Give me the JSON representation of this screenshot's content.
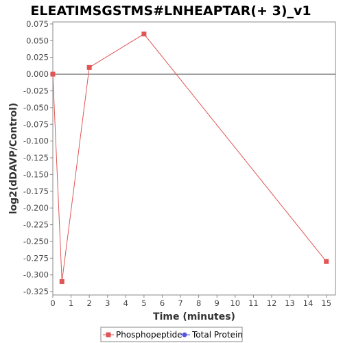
{
  "chart_data": {
    "type": "line",
    "title": "ELEATIMSGSTMS#LNHEAPTAR(+ 3)_v1",
    "xlabel": "Time (minutes)",
    "ylabel": "log2(dDAVP/Control)",
    "xlim": [
      0,
      15.5
    ],
    "ylim": [
      -0.33,
      0.078
    ],
    "x_ticks": [
      0,
      1,
      2,
      3,
      4,
      5,
      6,
      7,
      8,
      9,
      10,
      11,
      12,
      13,
      14,
      15
    ],
    "y_ticks": [
      0.075,
      0.05,
      0.025,
      0.0,
      -0.025,
      -0.05,
      -0.075,
      -0.1,
      -0.125,
      -0.15,
      -0.175,
      -0.2,
      -0.225,
      -0.25,
      -0.275,
      -0.3,
      -0.325
    ],
    "x_tick_labels": [
      "0",
      "1",
      "2",
      "3",
      "4",
      "5",
      "6",
      "7",
      "8",
      "9",
      "10",
      "11",
      "12",
      "13",
      "14",
      "15"
    ],
    "y_tick_labels": [
      "0.075",
      "0.050",
      "0.025",
      "0.000",
      "-0.025",
      "-0.050",
      "-0.075",
      "-0.100",
      "-0.125",
      "-0.150",
      "-0.175",
      "-0.200",
      "-0.225",
      "-0.250",
      "-0.275",
      "-0.300",
      "-0.325"
    ],
    "grid": false,
    "zero_line": true,
    "legend_position": "bottom",
    "series": [
      {
        "name": "Phosphopeptide",
        "color": "#e05555",
        "marker": "square",
        "x": [
          0,
          0.5,
          2,
          5,
          15
        ],
        "y": [
          0.0,
          -0.31,
          0.01,
          0.06,
          -0.28
        ]
      },
      {
        "name": "Total Protein",
        "color": "#5555e0",
        "marker": "circle",
        "x": [],
        "y": []
      }
    ]
  }
}
